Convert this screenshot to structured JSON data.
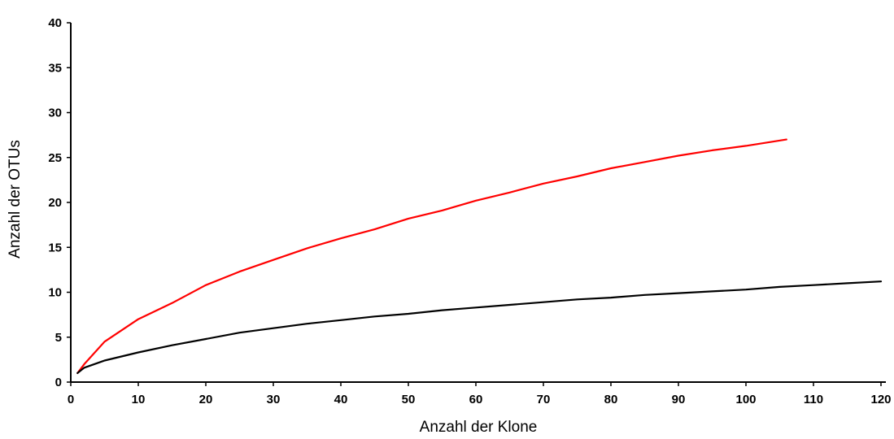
{
  "chart_data": {
    "type": "line",
    "title": "",
    "xlabel": "Anzahl der Klone",
    "ylabel": "Anzahl der OTUs",
    "xlim": [
      0,
      120
    ],
    "ylim": [
      0,
      40
    ],
    "xticks": [
      0,
      10,
      20,
      30,
      40,
      50,
      60,
      70,
      80,
      90,
      100,
      110,
      120
    ],
    "yticks": [
      0,
      5,
      10,
      15,
      20,
      25,
      30,
      35,
      40
    ],
    "grid": false,
    "legend": "none",
    "series": [
      {
        "color": "#ff0000",
        "x": [
          1,
          2,
          5,
          10,
          15,
          20,
          25,
          30,
          35,
          40,
          45,
          50,
          55,
          60,
          65,
          70,
          75,
          80,
          85,
          90,
          95,
          100,
          106
        ],
        "y": [
          1,
          2,
          4.5,
          7,
          8.8,
          10.8,
          12.3,
          13.6,
          14.9,
          16,
          17,
          18.2,
          19.1,
          20.2,
          21.1,
          22.1,
          22.9,
          23.8,
          24.5,
          25.2,
          25.8,
          26.3,
          27
        ]
      },
      {
        "color": "#000000",
        "x": [
          1,
          2,
          5,
          10,
          15,
          20,
          25,
          30,
          35,
          40,
          45,
          50,
          55,
          60,
          65,
          70,
          75,
          80,
          85,
          90,
          95,
          100,
          105,
          110,
          115,
          120
        ],
        "y": [
          1,
          1.6,
          2.4,
          3.3,
          4.1,
          4.8,
          5.5,
          6,
          6.5,
          6.9,
          7.3,
          7.6,
          8,
          8.3,
          8.6,
          8.9,
          9.2,
          9.4,
          9.7,
          9.9,
          10.1,
          10.3,
          10.6,
          10.8,
          11,
          11.2
        ]
      }
    ]
  }
}
